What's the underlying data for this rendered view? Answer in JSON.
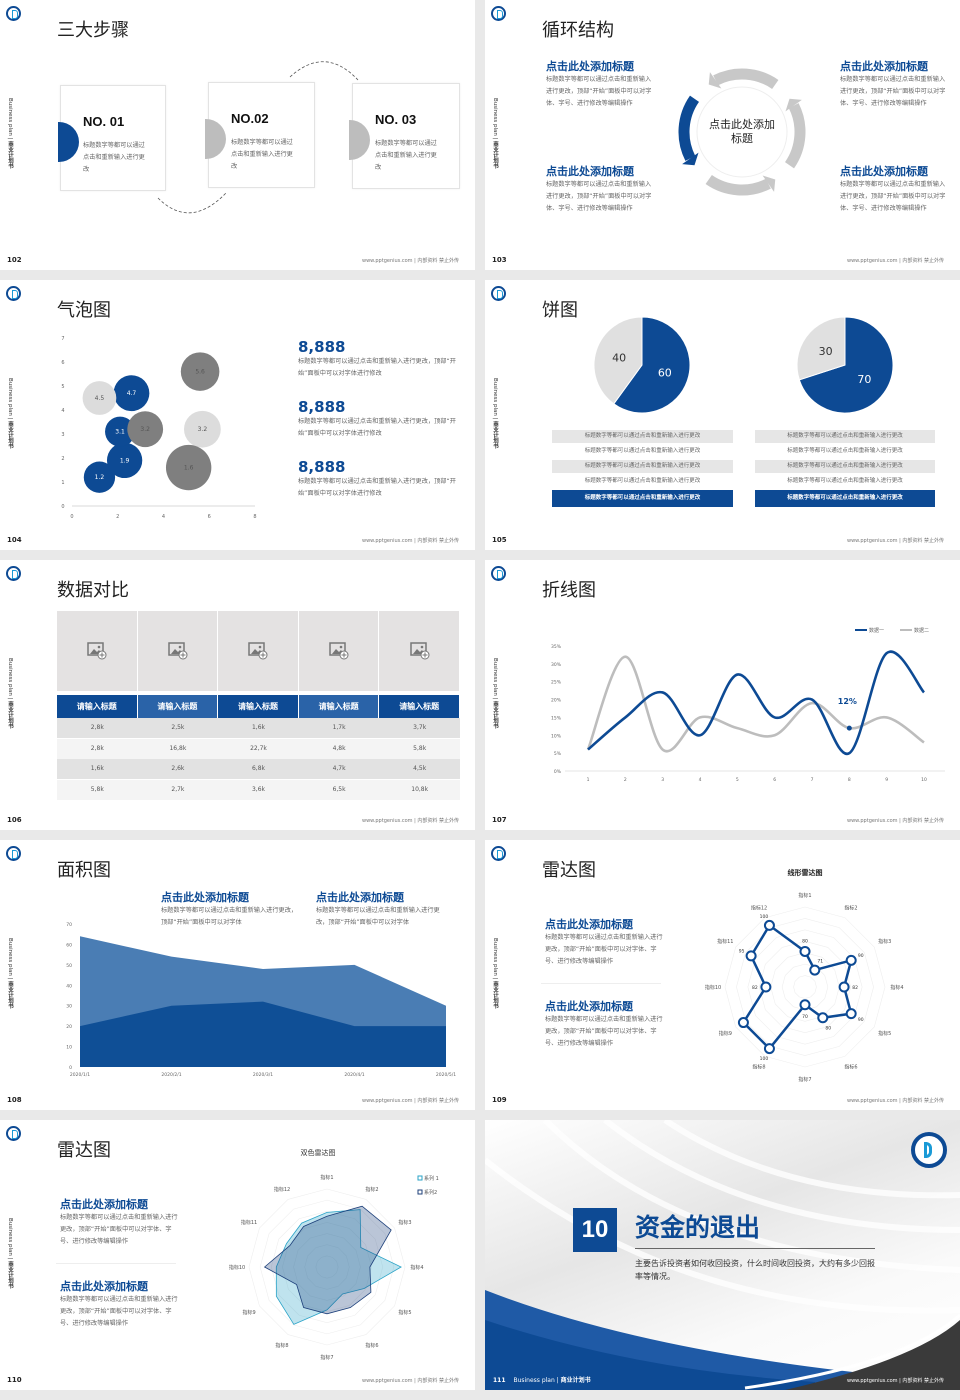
{
  "common": {
    "side_label_en": "Business plan",
    "side_label_cn": "商业计划书",
    "footer": "www.pptgenius.com | 内部资料 禁止外传",
    "colors": {
      "primary": "#0d4a94",
      "mid_blue": "#4a7db4",
      "gray": "#bdbdbd",
      "dark_gray": "#7f7f7f",
      "light_gray": "#e0e0e0",
      "cyan": "#2aa3c7"
    }
  },
  "s102": {
    "page": "102",
    "title": "三大步骤",
    "steps": [
      {
        "no": "NO. 01",
        "text": "标题数字等都可以通过点击和重新输入进行更改"
      },
      {
        "no": "NO.02",
        "text": "标题数字等都可以通过点击和重新输入进行更改"
      },
      {
        "no": "NO. 03",
        "text": "标题数字等都可以通过点击和重新输入进行更改"
      }
    ]
  },
  "s103": {
    "page": "103",
    "title": "循环结构",
    "center": "点击此处添加标题",
    "blocks": [
      {
        "heading": "点击此处添加标题",
        "text": "标题数字等都可以通过点击和重新输入进行更改，顶部“开始”面板中可以对字体、字号、进行修改等编辑操作"
      },
      {
        "heading": "点击此处添加标题",
        "text": "标题数字等都可以通过点击和重新输入进行更改，顶部“开始”面板中可以对字体、字号、进行修改等编辑操作"
      },
      {
        "heading": "点击此处添加标题",
        "text": "标题数字等都可以通过点击和重新输入进行更改，顶部“开始”面板中可以对字体、字号、进行修改等编辑操作"
      },
      {
        "heading": "点击此处添加标题",
        "text": "标题数字等都可以通过点击和重新输入进行更改，顶部“开始”面板中可以对字体、字号、进行修改等编辑操作"
      }
    ]
  },
  "s104": {
    "page": "104",
    "title": "气泡图",
    "stats": [
      {
        "value": "8,888",
        "text": "标题数字等都可以通过点击和重新输入进行更改，顶部“开始”面板中可以对字体进行修改"
      },
      {
        "value": "8,888",
        "text": "标题数字等都可以通过点击和重新输入进行更改，顶部“开始”面板中可以对字体进行修改"
      },
      {
        "value": "8,888",
        "text": "标题数字等都可以通过点击和重新输入进行更改，顶部“开始”面板中可以对字体进行修改"
      }
    ]
  },
  "s105": {
    "page": "105",
    "title": "饼图",
    "rows_left": [
      "标题数字等都可以通过点击和重新输入进行更改",
      "标题数字等都可以通过点击和重新输入进行更改",
      "标题数字等都可以通过点击和重新输入进行更改",
      "标题数字等都可以通过点击和重新输入进行更改",
      "标题数字等都可以通过点击和重新输入进行更改"
    ],
    "rows_right": [
      "标题数字等都可以通过点击和重新输入进行更改",
      "标题数字等都可以通过点击和重新输入进行更改",
      "标题数字等都可以通过点击和重新输入进行更改",
      "标题数字等都可以通过点击和重新输入进行更改",
      "标题数字等都可以通过点击和重新输入进行更改"
    ]
  },
  "s106": {
    "page": "106",
    "title": "数据对比",
    "headers": [
      "请输入标题",
      "请输入标题",
      "请输入标题",
      "请输入标题",
      "请输入标题"
    ],
    "rows": [
      [
        "2,8k",
        "2,5k",
        "1,6k",
        "1,7k",
        "3,7k"
      ],
      [
        "2,8k",
        "16,8k",
        "22,7k",
        "4,8k",
        "5,8k"
      ],
      [
        "1,6k",
        "2,6k",
        "6,8k",
        "4,7k",
        "4,5k"
      ],
      [
        "5,8k",
        "2,7k",
        "3,6k",
        "6,5k",
        "10,8k"
      ]
    ]
  },
  "s107": {
    "page": "107",
    "title": "折线图"
  },
  "s108": {
    "page": "108",
    "title": "面积图",
    "blocks": [
      {
        "heading": "点击此处添加标题",
        "text": "标题数字等都可以通过点击和重新输入进行更改，顶部“开始”面板中可以对字体"
      },
      {
        "heading": "点击此处添加标题",
        "text": "标题数字等都可以通过点击和重新输入进行更改，顶部“开始”面板中可以对字体"
      }
    ]
  },
  "s109": {
    "page": "109",
    "title": "雷达图",
    "blocks": [
      {
        "heading": "点击此处添加标题",
        "text": "标题数字等都可以通过点击和重新输入进行更改，顶部“开始”面板中可以对字体、字号、进行修改等编辑操作"
      },
      {
        "heading": "点击此处添加标题",
        "text": "标题数字等都可以通过点击和重新输入进行更改，顶部“开始”面板中可以对字体、字号、进行修改等编辑操作"
      }
    ]
  },
  "s110": {
    "page": "110",
    "title": "雷达图",
    "blocks": [
      {
        "heading": "点击此处添加标题",
        "text": "标题数字等都可以通过点击和重新输入进行更改，顶部“开始”面板中可以对字体、字号、进行修改等编辑操作"
      },
      {
        "heading": "点击此处添加标题",
        "text": "标题数字等都可以通过点击和重新输入进行更改，顶部“开始”面板中可以对字体、字号、进行修改等编辑操作"
      }
    ]
  },
  "s111": {
    "page": "111",
    "number": "10",
    "title": "资金的退出",
    "desc": "主要告诉投资者如何收回投资，什么时间收回投资，大约有多少回报率等情况。",
    "side_label_en": "Business plan |",
    "side_label_cn": "商业计划书"
  },
  "chart_data": [
    {
      "type": "scatter",
      "subtype": "bubble",
      "slide": "104",
      "xlim": [
        0,
        8
      ],
      "ylim": [
        0,
        7
      ],
      "x_ticks": [
        "0",
        "2",
        "4",
        "6",
        "8"
      ],
      "y_ticks": [
        "0",
        "1",
        "2",
        "3",
        "4",
        "5",
        "6",
        "7"
      ],
      "points": [
        {
          "x": 1.2,
          "y": 1.2,
          "size": 1.2,
          "label": "1.2",
          "color": "#0d4a94"
        },
        {
          "x": 2.3,
          "y": 1.9,
          "size": 1.9,
          "label": "1.9",
          "color": "#0d4a94"
        },
        {
          "x": 2.1,
          "y": 3.1,
          "size": 1.0,
          "label": "3.1",
          "color": "#0d4a94"
        },
        {
          "x": 2.6,
          "y": 4.7,
          "size": 2.0,
          "label": "4.7",
          "color": "#0d4a94"
        },
        {
          "x": 1.2,
          "y": 4.5,
          "size": 1.6,
          "label": "4.5",
          "color": "#dcdcdc"
        },
        {
          "x": 3.2,
          "y": 3.2,
          "size": 2.0,
          "label": "3.2",
          "color": "#7f7f7f"
        },
        {
          "x": 5.7,
          "y": 3.2,
          "size": 2.2,
          "label": "3.2",
          "color": "#dcdcdc"
        },
        {
          "x": 5.1,
          "y": 1.6,
          "size": 4.4,
          "label": "1.6",
          "color": "#7f7f7f"
        },
        {
          "x": 5.6,
          "y": 5.6,
          "size": 2.6,
          "label": "5.6",
          "color": "#7f7f7f"
        }
      ]
    },
    {
      "type": "pie",
      "slide": "105",
      "values": [
        60,
        40
      ],
      "labels": [
        "60",
        "40"
      ],
      "colors": [
        "#0d4a94",
        "#e0e0e0"
      ]
    },
    {
      "type": "pie",
      "slide": "105",
      "values": [
        70,
        30
      ],
      "labels": [
        "70",
        "30"
      ],
      "colors": [
        "#0d4a94",
        "#e0e0e0"
      ]
    },
    {
      "type": "line",
      "slide": "107",
      "smooth": true,
      "x": [
        1,
        2,
        3,
        4,
        5,
        6,
        7,
        8,
        9,
        10
      ],
      "ylim": [
        0,
        35
      ],
      "y_ticks": [
        "0%",
        "5%",
        "10%",
        "15%",
        "20%",
        "25%",
        "30%",
        "35%"
      ],
      "legend": "top-right",
      "series": [
        {
          "name": "数据一",
          "color": "#0d4a94",
          "values": [
            6,
            15,
            22,
            10,
            27,
            15,
            20,
            5,
            33,
            22
          ]
        },
        {
          "name": "数据二",
          "color": "#bdbdbd",
          "values": [
            6,
            32,
            6,
            15,
            12,
            10,
            19,
            12,
            15,
            8
          ]
        }
      ],
      "annotation": {
        "x": 8,
        "y": 12,
        "text": "12%"
      }
    },
    {
      "type": "area",
      "slide": "108",
      "categories": [
        "2020/1/1",
        "2020/2/1",
        "2020/3/1",
        "2020/4/1",
        "2020/5/1"
      ],
      "ylim": [
        0,
        70
      ],
      "y_ticks": [
        "0",
        "10",
        "20",
        "30",
        "40",
        "50",
        "60",
        "70"
      ],
      "series": [
        {
          "color": "#4a7db4",
          "values": [
            64,
            54,
            48,
            50,
            30
          ]
        },
        {
          "color": "#0f4f96",
          "values": [
            20,
            30,
            32,
            20,
            20
          ]
        }
      ]
    },
    {
      "type": "radar",
      "slide": "109",
      "title": "线形雷达图",
      "axes": [
        "指标1",
        "指标2",
        "指标3",
        "指标4",
        "指标5",
        "指标6",
        "指标7",
        "指标8",
        "指标9",
        "指标10",
        "指标11",
        "指标12"
      ],
      "rlim": [
        60,
        105
      ],
      "series": [
        {
          "color": "#0d4a94",
          "values": [
            80,
            71,
            90,
            82,
            90,
            80,
            70,
            100,
            100,
            82,
            95,
            100
          ],
          "labels": [
            "80",
            "71",
            "90",
            "82",
            "90",
            "80",
            "70",
            "100",
            "",
            "82",
            "95",
            "100"
          ]
        }
      ]
    },
    {
      "type": "radar",
      "slide": "110",
      "title": "双色雷达图",
      "axes": [
        "指标1",
        "指标2",
        "指标3",
        "指标4",
        "指标5",
        "指标6",
        "指标7",
        "指标8",
        "指标9",
        "指标10",
        "指标11",
        "指标12"
      ],
      "rlim": [
        0,
        100
      ],
      "legend": "top-right",
      "series": [
        {
          "name": "系列 1",
          "color": "#2aa3c7",
          "values": [
            70,
            85,
            50,
            95,
            55,
            40,
            55,
            85,
            75,
            65,
            60,
            65
          ]
        },
        {
          "name": "系列2",
          "color": "#1c3f7a",
          "values": [
            65,
            90,
            95,
            55,
            65,
            60,
            60,
            60,
            45,
            80,
            55,
            60
          ]
        }
      ]
    }
  ]
}
